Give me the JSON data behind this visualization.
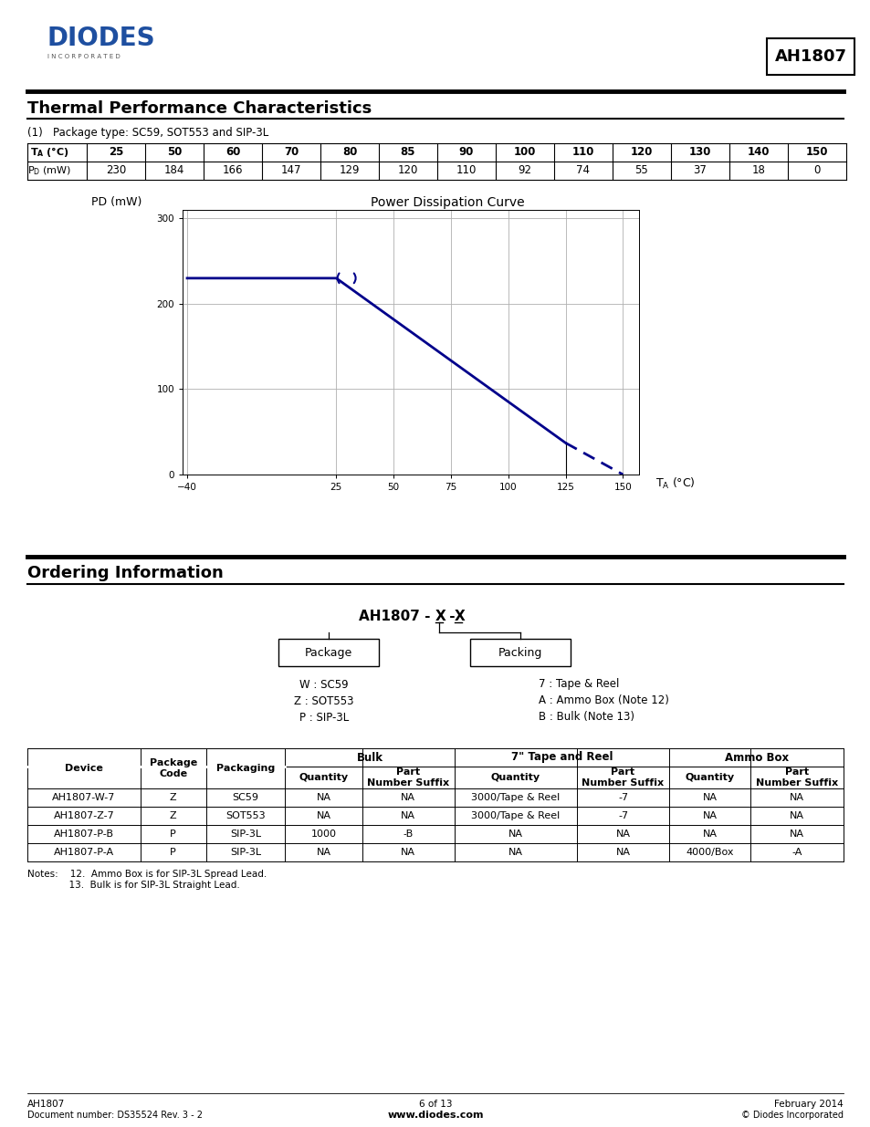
{
  "title_section": "Thermal Performance Characteristics",
  "subtitle": "(1)   Package type: SC59, SOT553 and SIP-3L",
  "table1_headers": [
    "25",
    "50",
    "60",
    "70",
    "80",
    "85",
    "90",
    "100",
    "110",
    "120",
    "130",
    "140",
    "150"
  ],
  "table1_row1_values": [
    230,
    184,
    166,
    147,
    129,
    120,
    110,
    92,
    74,
    55,
    37,
    18,
    0
  ],
  "chart_title": "Power Dissipation Curve",
  "curve_color": "#00008B",
  "xaxis_ticks": [
    -40,
    25,
    50,
    75,
    100,
    125,
    150
  ],
  "yaxis_ticks": [
    0,
    100,
    200,
    300
  ],
  "xlim": [
    -42,
    157
  ],
  "ylim": [
    0,
    310
  ],
  "ordering_title": "Ordering Information",
  "part_number_label": "AH1807 - X - X",
  "box1_label": "Package",
  "box2_label": "Packing",
  "pkg_items": [
    "W : SC59",
    "Z : SOT553",
    "P : SIP-3L"
  ],
  "packing_items": [
    "7 : Tape & Reel",
    "A : Ammo Box (Note 12)",
    "B : Bulk (Note 13)"
  ],
  "table2_rows": [
    [
      "AH1807-W-7",
      "Z",
      "SC59",
      "NA",
      "NA",
      "3000/Tape & Reel",
      "-7",
      "NA",
      "NA"
    ],
    [
      "AH1807-Z-7",
      "Z",
      "SOT553",
      "NA",
      "NA",
      "3000/Tape & Reel",
      "-7",
      "NA",
      "NA"
    ],
    [
      "AH1807-P-B",
      "P",
      "SIP-3L",
      "1000",
      "-B",
      "NA",
      "NA",
      "NA",
      "NA"
    ],
    [
      "AH1807-P-A",
      "P",
      "SIP-3L",
      "NA",
      "NA",
      "NA",
      "NA",
      "4000/Box",
      "-A"
    ]
  ],
  "note1": "Notes:    12.  Ammo Box is for SIP-3L Spread Lead.",
  "note2": "              13.  Bulk is for SIP-3L Straight Lead.",
  "footer_left1": "AH1807",
  "footer_left2": "Document number: DS35524 Rev. 3 - 2",
  "footer_center1": "6 of 13",
  "footer_center2": "www.diodes.com",
  "footer_right1": "February 2014",
  "footer_right2": "© Diodes Incorporated",
  "diodes_logo_color": "#1E4FA0",
  "background_color": "#ffffff"
}
